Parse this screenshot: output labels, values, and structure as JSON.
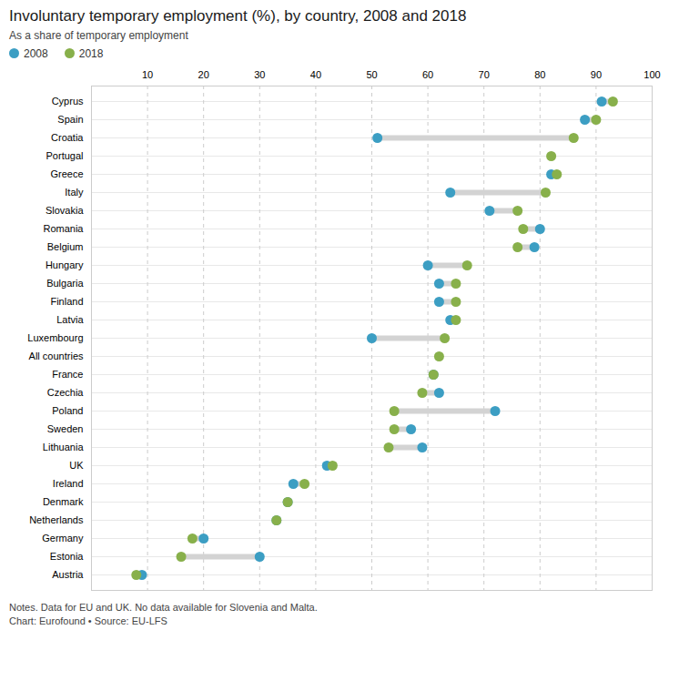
{
  "chart_data": {
    "type": "dumbbell",
    "title": "Involuntary temporary employment (%), by country, 2008 and 2018",
    "subtitle": "As a share of temporary employment",
    "note": "Notes. Data for EU and UK. No data available for Slovenia and Malta.",
    "source": "Chart: Eurofound • Source: EU-LFS",
    "categories": [
      "Cyprus",
      "Spain",
      "Croatia",
      "Portugal",
      "Greece",
      "Italy",
      "Slovakia",
      "Romania",
      "Belgium",
      "Hungary",
      "Bulgaria",
      "Finland",
      "Latvia",
      "Luxembourg",
      "All countries",
      "France",
      "Czechia",
      "Poland",
      "Sweden",
      "Lithuania",
      "UK",
      "Ireland",
      "Denmark",
      "Netherlands",
      "Germany",
      "Estonia",
      "Austria"
    ],
    "series": [
      {
        "name": "2008",
        "color": "#3c9ec3",
        "values": [
          91,
          88,
          51,
          null,
          82,
          64,
          71,
          80,
          79,
          60,
          62,
          62,
          64,
          50,
          null,
          61,
          62,
          72,
          57,
          59,
          42,
          36,
          35,
          33,
          20,
          30,
          9
        ]
      },
      {
        "name": "2018",
        "color": "#88b04b",
        "values": [
          93,
          90,
          86,
          82,
          83,
          81,
          76,
          77,
          76,
          67,
          65,
          65,
          65,
          63,
          62,
          61,
          59,
          54,
          54,
          53,
          43,
          38,
          35,
          33,
          18,
          16,
          8
        ]
      }
    ],
    "xlim": [
      0,
      100
    ],
    "xticks": [
      10,
      20,
      30,
      40,
      50,
      60,
      70,
      80,
      90,
      100
    ],
    "grid": true,
    "legend": "upper-left"
  }
}
